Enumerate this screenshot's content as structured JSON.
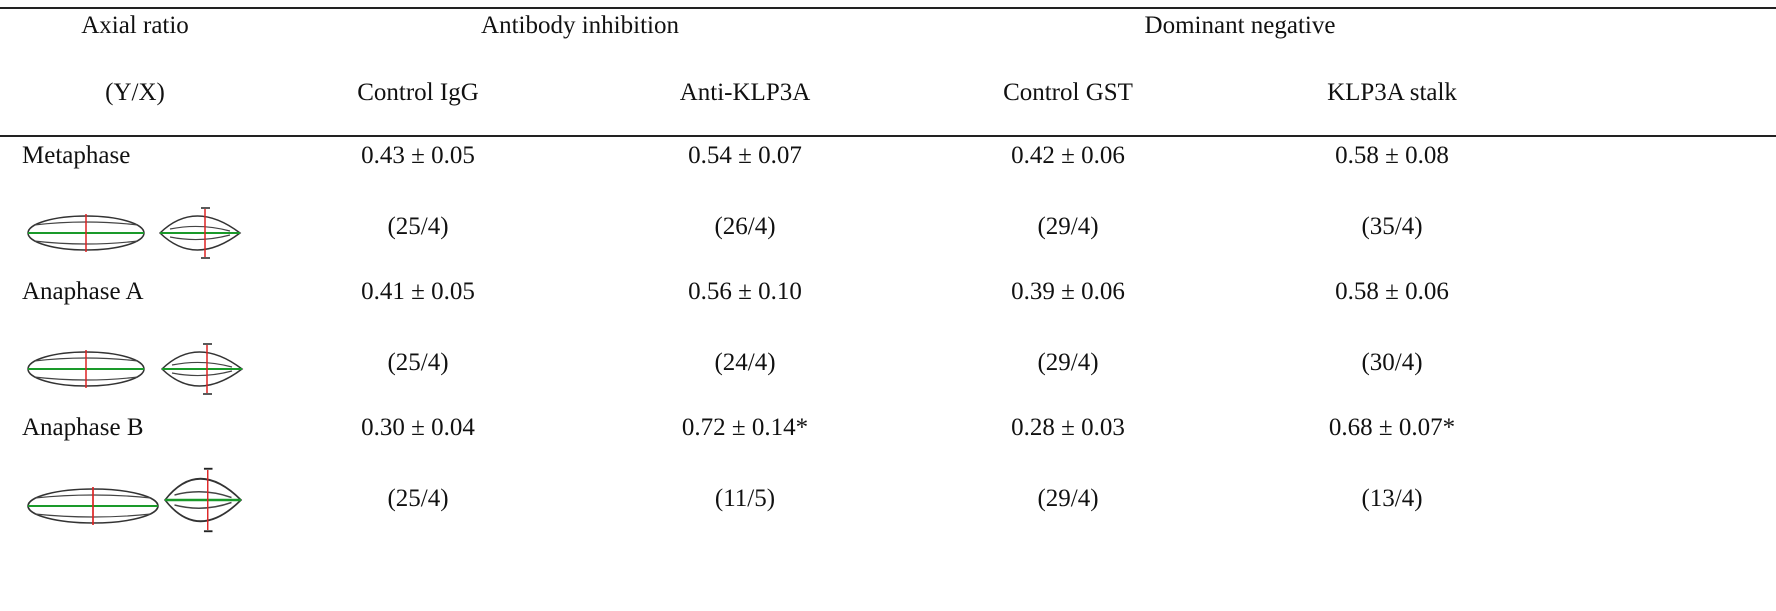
{
  "table": {
    "header": {
      "row1": [
        "Axial ratio",
        "Antibody inhibition",
        "Dominant negative"
      ],
      "row2": [
        "(Y/X)",
        "Control IgG",
        "Anti-KLP3A",
        "Control GST",
        "KLP3A stalk"
      ]
    },
    "rows": [
      {
        "stage": "Metaphase",
        "values": [
          "0.43 ± 0.05",
          "0.54 ± 0.07",
          "0.42 ± 0.06",
          "0.58 ± 0.08"
        ],
        "counts": [
          "(25/4)",
          "(26/4)",
          "(29/4)",
          "(35/4)"
        ]
      },
      {
        "stage": "Anaphase A",
        "values": [
          "0.41 ± 0.05",
          "0.56 ± 0.10",
          "0.39 ± 0.06",
          "0.58 ± 0.06"
        ],
        "counts": [
          "(25/4)",
          "(24/4)",
          "(29/4)",
          "(30/4)"
        ]
      },
      {
        "stage": "Anaphase B",
        "values": [
          "0.30 ± 0.04",
          "0.72 ± 0.14*",
          "0.28 ± 0.03",
          "0.68 ± 0.07*"
        ],
        "counts": [
          "(25/4)",
          "(11/5)",
          "(29/4)",
          "(13/4)"
        ]
      }
    ]
  }
}
